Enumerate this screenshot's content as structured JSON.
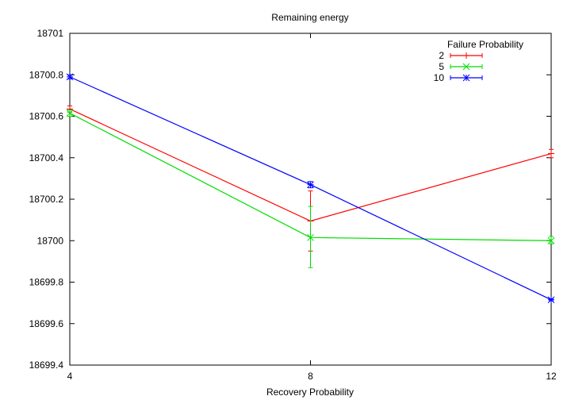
{
  "chart_data": {
    "type": "line",
    "title": "Remaining energy",
    "xlabel": "Recovery Probability",
    "ylabel": "",
    "x": [
      4,
      8,
      12
    ],
    "x_ticks": [
      "4",
      "8",
      "12"
    ],
    "xlim": [
      4,
      12
    ],
    "y_ticks": [
      "18699.4",
      "18699.6",
      "18699.8",
      "18700",
      "18700.2",
      "18700.4",
      "18700.6",
      "18700.8",
      "18701"
    ],
    "ylim": [
      18699.4,
      18701
    ],
    "grid": false,
    "legend_title": "Failure Probability",
    "legend_position": "top-right",
    "series": [
      {
        "name": "2",
        "color": "#ff0000",
        "marker": "plus",
        "values": [
          18700.635,
          18700.095,
          18700.42
        ],
        "errors": [
          [
            18700.62,
            18700.65
          ],
          [
            18699.95,
            18700.24
          ],
          [
            18700.4,
            18700.44
          ]
        ]
      },
      {
        "name": "5",
        "color": "#00dd00",
        "marker": "cross",
        "values": [
          18700.615,
          18700.015,
          18700.0
        ],
        "errors": [
          [
            18700.6,
            18700.63
          ],
          [
            18699.87,
            18700.165
          ],
          [
            18699.985,
            18700.02
          ]
        ]
      },
      {
        "name": "10",
        "color": "#0000ff",
        "marker": "star",
        "values": [
          18700.79,
          18700.27,
          18699.715
        ],
        "errors": [
          [
            18700.78,
            18700.8
          ],
          [
            18700.255,
            18700.285
          ],
          [
            18699.71,
            18699.72
          ]
        ]
      }
    ]
  }
}
